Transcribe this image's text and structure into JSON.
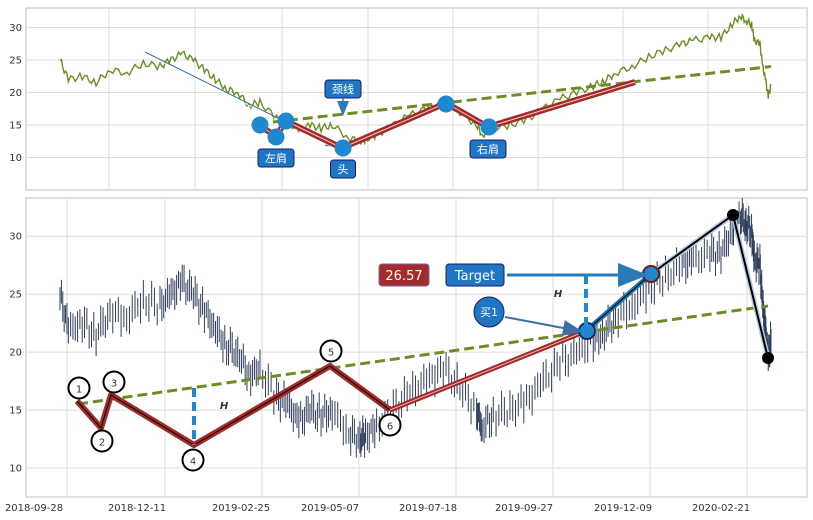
{
  "chart_data": [
    {
      "type": "line",
      "panel": "top",
      "x_ticks": [
        "2018-09-28",
        "2018-12-11",
        "2019-02-25",
        "2019-05-07",
        "2019-07-18",
        "2019-09-27",
        "2019-12-09",
        "2020-02-21"
      ],
      "yticks": [
        10,
        15,
        20,
        25,
        30
      ],
      "ylim": [
        5,
        33
      ],
      "grid": true,
      "series": [
        {
          "color": "#6b8e23",
          "values": [
            [
              0,
              25
            ],
            [
              3,
              22
            ],
            [
              8,
              22.5
            ],
            [
              13,
              21.5
            ],
            [
              18,
              23.5
            ],
            [
              24,
              23
            ],
            [
              30,
              24.5
            ],
            [
              36,
              24
            ],
            [
              40,
              25
            ],
            [
              44,
              26
            ],
            [
              48,
              25
            ],
            [
              52,
              23.5
            ],
            [
              56,
              22
            ],
            [
              60,
              20.5
            ],
            [
              64,
              20
            ],
            [
              68,
              18
            ],
            [
              72,
              18.5
            ],
            [
              78,
              16
            ],
            [
              82,
              15.5
            ],
            [
              86,
              14
            ],
            [
              90,
              15
            ],
            [
              94,
              14.5
            ],
            [
              98,
              15
            ],
            [
              104,
              13
            ],
            [
              108,
              12.5
            ],
            [
              110,
              12.8
            ],
            [
              114,
              13.5
            ],
            [
              120,
              15
            ],
            [
              126,
              16.5
            ],
            [
              132,
              17.5
            ],
            [
              138,
              18.6
            ],
            [
              144,
              17
            ],
            [
              150,
              15
            ],
            [
              152,
              13.5
            ],
            [
              156,
              14.5
            ],
            [
              162,
              15
            ],
            [
              168,
              15.8
            ],
            [
              174,
              17.5
            ],
            [
              180,
              19
            ],
            [
              186,
              20
            ],
            [
              192,
              21
            ],
            [
              196,
              21.8
            ],
            [
              200,
              23
            ],
            [
              206,
              24
            ],
            [
              212,
              25.5
            ],
            [
              218,
              26.5
            ],
            [
              224,
              27.5
            ],
            [
              228,
              28
            ],
            [
              234,
              28.5
            ],
            [
              238,
              28.5
            ],
            [
              242,
              30.5
            ],
            [
              245,
              31.8
            ],
            [
              247,
              31
            ],
            [
              249,
              30.5
            ],
            [
              250,
              28
            ],
            [
              252,
              27.5
            ],
            [
              253,
              24
            ],
            [
              254,
              22
            ],
            [
              255,
              19.5
            ],
            [
              256,
              21
            ]
          ]
        }
      ],
      "neckline": {
        "color": "#6b8e23",
        "from": [
          90,
          15.5
        ],
        "to": [
          256,
          24
        ]
      },
      "pattern_path": {
        "color": "#a52a2a",
        "points": [
          [
            92,
            14.5
          ],
          [
            94,
            13.5
          ],
          [
            97,
            15
          ],
          [
            107,
            12.5
          ],
          [
            130,
            18.6
          ],
          [
            141,
            12.5
          ],
          [
            176,
            21.5
          ]
        ]
      },
      "pattern_points": [
        {
          "x": 92,
          "y": 15.5,
          "label": "左肩"
        },
        {
          "x": 94,
          "y": 13.5,
          "label": ""
        },
        {
          "x": 97,
          "y": 15.8,
          "label": ""
        },
        {
          "x": 107,
          "y": 12.3,
          "label": "头"
        },
        {
          "x": 130,
          "y": 18.6,
          "label": ""
        },
        {
          "x": 141,
          "y": 12.5,
          "label": "右肩"
        }
      ],
      "annotations": [
        "颈线",
        "左肩",
        "头",
        "右肩"
      ]
    },
    {
      "type": "candlestick",
      "panel": "bottom",
      "x_ticks": [
        "2018-09-28",
        "2018-12-11",
        "2019-02-25",
        "2019-05-07",
        "2019-07-18",
        "2019-09-27",
        "2019-12-09",
        "2020-02-21"
      ],
      "yticks": [
        10,
        15,
        20,
        25,
        30
      ],
      "ylim": [
        7.5,
        33.3
      ],
      "grid": true,
      "series_color": "#2f3e5c",
      "neckline": {
        "color": "#6b8e23",
        "from": [
          2,
          15.8
        ],
        "to": [
          256,
          24
        ]
      },
      "zigzag": {
        "color": "#a52a2a",
        "points": [
          {
            "x": 2,
            "y": 15.5,
            "label": "1"
          },
          {
            "x": 8,
            "y": 13.5,
            "label": "2"
          },
          {
            "x": 12,
            "y": 16.2,
            "label": "3"
          },
          {
            "x": 40,
            "y": 12,
            "label": "4"
          },
          {
            "x": 87,
            "y": 18.8,
            "label": "5"
          },
          {
            "x": 105,
            "y": 15.2,
            "label": "6"
          }
        ]
      },
      "breakout_path": {
        "color": "#a52a2a",
        "from": [
          105,
          15.2
        ],
        "to": [
          190,
          21.8
        ]
      },
      "target_path": {
        "color": "#1f77b4",
        "from": [
          190,
          21.8
        ],
        "to": [
          210,
          26.6
        ]
      },
      "final_path": {
        "color": "#000000",
        "points": [
          [
            210,
            26.6
          ],
          [
            236,
            31.8
          ],
          [
            246,
            19.5
          ]
        ]
      },
      "height_markers": [
        {
          "x": 50,
          "y_from": 11.2,
          "y_to": 17.2,
          "label": "H"
        },
        {
          "x": 187,
          "y_from": 21.5,
          "y_to": 26.5,
          "label": "H"
        }
      ],
      "target_value": "26.57",
      "target_label": "Target",
      "buy_label": "买1"
    }
  ]
}
